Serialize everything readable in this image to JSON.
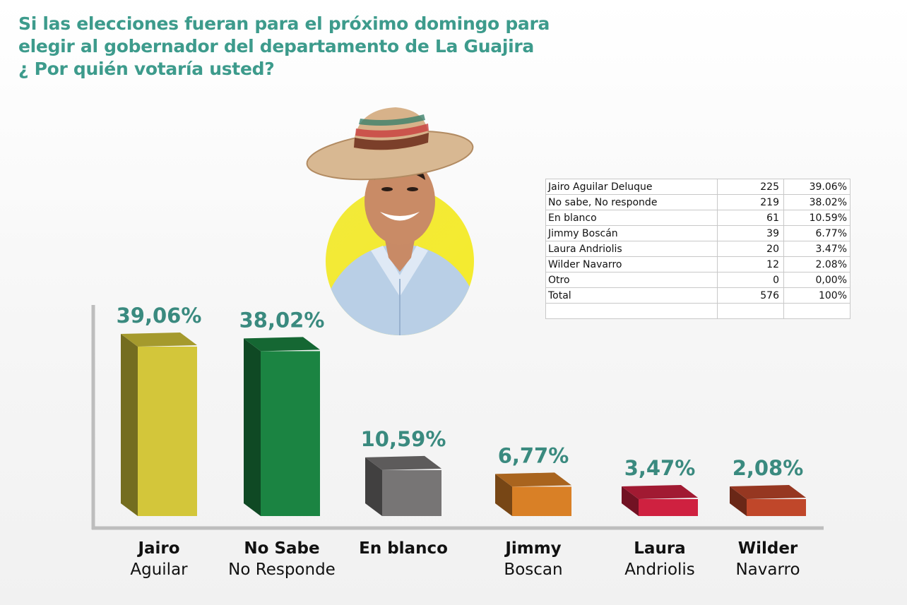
{
  "title": {
    "line1": "Si las elecciones fueran para el próximo domingo para",
    "line2": "elegir al gobernador del departamento de La Guajira",
    "line3": "¿ Por quién votaría usted?"
  },
  "table": {
    "rows": [
      {
        "name": "Jairo Aguilar Deluque",
        "votes": "225",
        "pct": "39.06%"
      },
      {
        "name": "No sabe, No responde",
        "votes": "219",
        "pct": "38.02%"
      },
      {
        "name": "En blanco",
        "votes": "61",
        "pct": "10.59%"
      },
      {
        "name": "Jimmy Boscán",
        "votes": "39",
        "pct": "6.77%"
      },
      {
        "name": "Laura Andriolis",
        "votes": "20",
        "pct": "3.47%"
      },
      {
        "name": "Wilder Navarro",
        "votes": "12",
        "pct": "2.08%"
      },
      {
        "name": "Otro",
        "votes": "0",
        "pct": "0,00%"
      },
      {
        "name": "Total",
        "votes": "576",
        "pct": "100%"
      },
      {
        "name": "",
        "votes": "",
        "pct": ""
      }
    ]
  },
  "chart_data": {
    "type": "bar",
    "categories": [
      "Jairo Aguilar",
      "No Sabe No Responde",
      "En blanco",
      "Jimmy Boscan",
      "Laura Andriolis",
      "Wilder Navarro"
    ],
    "category_lines": [
      [
        "Jairo",
        "Aguilar"
      ],
      [
        "No Sabe",
        "No Responde"
      ],
      [
        "En blanco",
        ""
      ],
      [
        "Jimmy",
        "Boscan"
      ],
      [
        "Laura",
        "Andriolis"
      ],
      [
        "Wilder",
        "Navarro"
      ]
    ],
    "values": [
      39.06,
      38.02,
      10.59,
      6.77,
      3.47,
      2.08
    ],
    "value_labels": [
      "39,06%",
      "38,02%",
      "10,59%",
      "6,77%",
      "3,47%",
      "2,08%"
    ],
    "colors": [
      "#d3c63a",
      "#1b8442",
      "#777575",
      "#d98026",
      "#cf2140",
      "#c0472a"
    ],
    "label_color": "#3a8a7f",
    "grid": false,
    "legend": "none"
  }
}
